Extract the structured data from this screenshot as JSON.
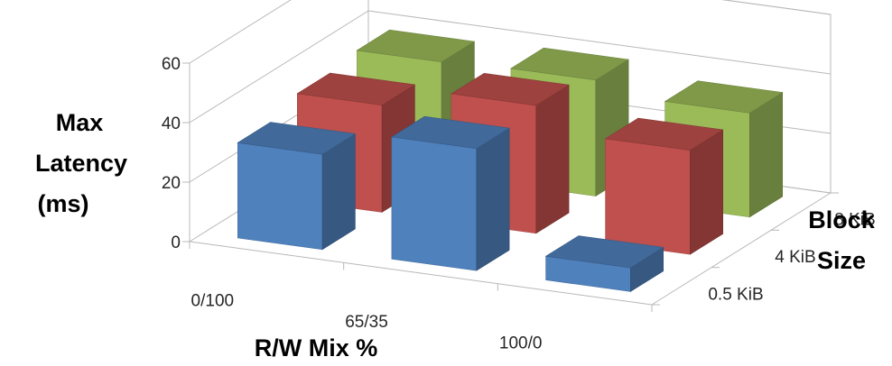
{
  "chart_data": {
    "type": "bar",
    "variant": "3d-column",
    "title": "",
    "xlabel": "R/W Mix %",
    "ylabel": [
      "Max",
      "Latency",
      "(ms)"
    ],
    "zlabel": [
      "Block",
      "Size"
    ],
    "categories": [
      "0/100",
      "65/35",
      "100/0"
    ],
    "depth_categories": [
      "0.5 KiB",
      "4 KiB",
      "8 KiB"
    ],
    "ylim": [
      0,
      60
    ],
    "yticks": [
      0,
      20,
      40,
      60
    ],
    "grid": true,
    "legend": "none",
    "series": [
      {
        "name": "0.5 KiB",
        "color": "#4f81bd",
        "values": [
          32,
          41,
          8
        ]
      },
      {
        "name": "4 KiB",
        "color": "#c0504d",
        "values": [
          36,
          43,
          35
        ]
      },
      {
        "name": "8 KiB",
        "color": "#9bbb59",
        "values": [
          38,
          39,
          35
        ]
      }
    ]
  }
}
